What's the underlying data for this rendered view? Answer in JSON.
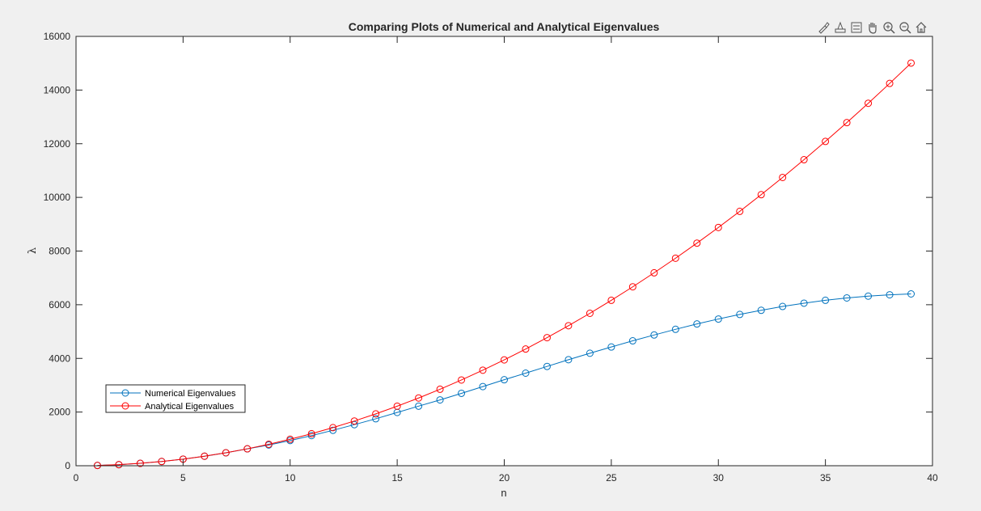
{
  "toolbar": {
    "icons": [
      "brush-icon",
      "data-tips-icon",
      "legend-icon",
      "pan-icon",
      "zoom-in-icon",
      "zoom-out-icon",
      "home-icon"
    ]
  },
  "chart_data": {
    "type": "line",
    "title": "Comparing Plots of Numerical and Analytical Eigenvalues",
    "xlabel": "n",
    "ylabel": "λ",
    "xlim": [
      0,
      40
    ],
    "ylim": [
      0,
      16000
    ],
    "xticks": [
      0,
      5,
      10,
      15,
      20,
      25,
      30,
      35,
      40
    ],
    "yticks": [
      0,
      2000,
      4000,
      6000,
      8000,
      10000,
      12000,
      14000,
      16000
    ],
    "grid": false,
    "legend_position": "lower-left",
    "x": [
      1,
      2,
      3,
      4,
      5,
      6,
      7,
      8,
      9,
      10,
      11,
      12,
      13,
      14,
      15,
      16,
      17,
      18,
      19,
      20,
      21,
      22,
      23,
      24,
      25,
      26,
      27,
      28,
      29,
      30,
      31,
      32,
      33,
      34,
      35,
      36,
      37,
      38,
      39
    ],
    "series": [
      {
        "name": "Numerical Eigenvalues",
        "color": "#0072bd",
        "marker": "circle",
        "values": [
          10,
          39,
          89,
          158,
          246,
          354,
          481,
          628,
          773,
          939,
          1123,
          1320,
          1531,
          1750,
          1985,
          2220,
          2453,
          2698,
          2950,
          3205,
          3450,
          3700,
          3952,
          4192,
          4425,
          4655,
          4872,
          5083,
          5283,
          5467,
          5638,
          5792,
          5935,
          6058,
          6165,
          6253,
          6320,
          6370,
          6403
        ]
      },
      {
        "name": "Analytical Eigenvalues",
        "color": "#ff0000",
        "marker": "circle",
        "values": [
          10,
          40,
          89,
          158,
          246,
          355,
          483,
          631,
          799,
          986,
          1193,
          1420,
          1666,
          1933,
          2219,
          2524,
          2850,
          3195,
          3560,
          3944,
          4349,
          4773,
          5217,
          5680,
          6164,
          6667,
          7190,
          7733,
          8295,
          8878,
          9480,
          10101,
          10743,
          11404,
          12085,
          12786,
          13507,
          14247,
          15007
        ]
      }
    ]
  }
}
